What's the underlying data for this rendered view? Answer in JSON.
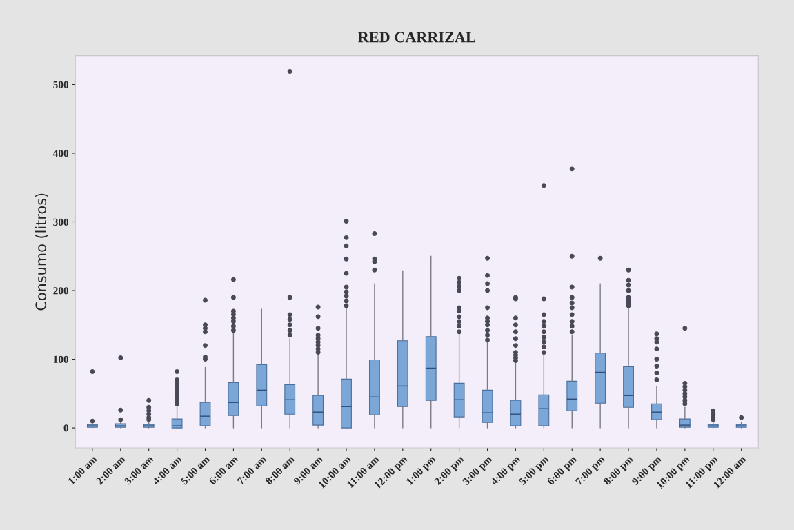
{
  "chart_data": {
    "type": "box",
    "title": "RED CARRIZAL",
    "ylabel": "Consumo (litros)",
    "categories": [
      "1:00 am",
      "2:00 am",
      "3:00 am",
      "4:00 am",
      "5:00 am",
      "6:00 am",
      "7:00 am",
      "8:00 am",
      "9:00 am",
      "10:00 am",
      "11:00 am",
      "12:00 pm",
      "1:00 pm",
      "2:00 pm",
      "3:00 pm",
      "4:00 pm",
      "5:00 pm",
      "6:00 pm",
      "7:00 pm",
      "8:00 pm",
      "9:00 pm",
      "10:00 pm",
      "11:00 pm",
      "12:00 am"
    ],
    "color": "#7aa6d8",
    "boxes": [
      {
        "low": 0,
        "q1": 1,
        "median": 3,
        "q3": 5,
        "high": 9,
        "outliers": [
          10,
          82
        ]
      },
      {
        "low": 0,
        "q1": 1,
        "median": 3,
        "q3": 6,
        "high": 10,
        "outliers": [
          12,
          26,
          102
        ]
      },
      {
        "low": 0,
        "q1": 1,
        "median": 3,
        "q3": 5,
        "high": 10,
        "outliers": [
          12,
          15,
          20,
          25,
          30,
          40
        ]
      },
      {
        "low": 0,
        "q1": 0,
        "median": 3,
        "q3": 13,
        "high": 32,
        "outliers": [
          35,
          40,
          45,
          50,
          55,
          60,
          65,
          70,
          82
        ]
      },
      {
        "low": 0,
        "q1": 3,
        "median": 17,
        "q3": 37,
        "high": 88,
        "outliers": [
          100,
          103,
          120,
          140,
          145,
          150,
          186
        ]
      },
      {
        "low": 0,
        "q1": 18,
        "median": 37,
        "q3": 66,
        "high": 138,
        "outliers": [
          142,
          148,
          155,
          160,
          165,
          170,
          190,
          216
        ]
      },
      {
        "low": 0,
        "q1": 32,
        "median": 55,
        "q3": 92,
        "high": 173
      },
      {
        "low": 0,
        "q1": 20,
        "median": 41,
        "q3": 63,
        "high": 130,
        "outliers": [
          135,
          142,
          150,
          158,
          165,
          190,
          519
        ]
      },
      {
        "low": 0,
        "q1": 4,
        "median": 23,
        "q3": 47,
        "high": 108,
        "outliers": [
          110,
          115,
          120,
          125,
          130,
          135,
          145,
          162,
          176
        ]
      },
      {
        "low": 0,
        "q1": 0,
        "median": 31,
        "q3": 71,
        "high": 175,
        "outliers": [
          178,
          185,
          192,
          198,
          205,
          225,
          246,
          265,
          277,
          301
        ]
      },
      {
        "low": 0,
        "q1": 19,
        "median": 45,
        "q3": 99,
        "high": 210,
        "outliers": [
          230,
          242,
          246,
          283
        ]
      },
      {
        "low": 0,
        "q1": 31,
        "median": 61,
        "q3": 127,
        "high": 229
      },
      {
        "low": 0,
        "q1": 40,
        "median": 87,
        "q3": 133,
        "high": 250
      },
      {
        "low": 0,
        "q1": 16,
        "median": 41,
        "q3": 65,
        "high": 138,
        "outliers": [
          140,
          148,
          155,
          162,
          170,
          175,
          200,
          206,
          212,
          218
        ]
      },
      {
        "low": 0,
        "q1": 8,
        "median": 22,
        "q3": 55,
        "high": 125,
        "outliers": [
          128,
          135,
          142,
          150,
          155,
          160,
          175,
          200,
          210,
          222,
          247
        ]
      },
      {
        "low": 0,
        "q1": 3,
        "median": 20,
        "q3": 40,
        "high": 95,
        "outliers": [
          98,
          102,
          106,
          110,
          120,
          130,
          140,
          150,
          160,
          188,
          190
        ]
      },
      {
        "low": 0,
        "q1": 3,
        "median": 28,
        "q3": 48,
        "high": 105,
        "outliers": [
          110,
          118,
          125,
          132,
          140,
          148,
          155,
          165,
          188,
          353
        ]
      },
      {
        "low": 0,
        "q1": 25,
        "median": 42,
        "q3": 68,
        "high": 135,
        "outliers": [
          140,
          148,
          155,
          165,
          175,
          182,
          190,
          205,
          250,
          377
        ]
      },
      {
        "low": 0,
        "q1": 36,
        "median": 81,
        "q3": 109,
        "high": 210,
        "outliers": [
          247
        ]
      },
      {
        "low": 0,
        "q1": 30,
        "median": 47,
        "q3": 89,
        "high": 175,
        "outliers": [
          178,
          182,
          186,
          190,
          200,
          208,
          215,
          230
        ]
      },
      {
        "low": 0,
        "q1": 12,
        "median": 23,
        "q3": 35,
        "high": 60,
        "outliers": [
          70,
          80,
          90,
          100,
          115,
          125,
          130,
          137
        ]
      },
      {
        "low": 0,
        "q1": 1,
        "median": 4,
        "q3": 13,
        "high": 30,
        "outliers": [
          35,
          40,
          45,
          50,
          55,
          60,
          65,
          145
        ]
      },
      {
        "low": 0,
        "q1": 1,
        "median": 3,
        "q3": 5,
        "high": 10,
        "outliers": [
          12,
          15,
          20,
          25
        ]
      },
      {
        "low": 0,
        "q1": 1,
        "median": 3,
        "q3": 5,
        "high": 8,
        "outliers": [
          15
        ]
      }
    ],
    "ylim": [
      -29,
      542
    ],
    "yticks": [
      0,
      100,
      200,
      300,
      400,
      500
    ],
    "grid": false
  }
}
